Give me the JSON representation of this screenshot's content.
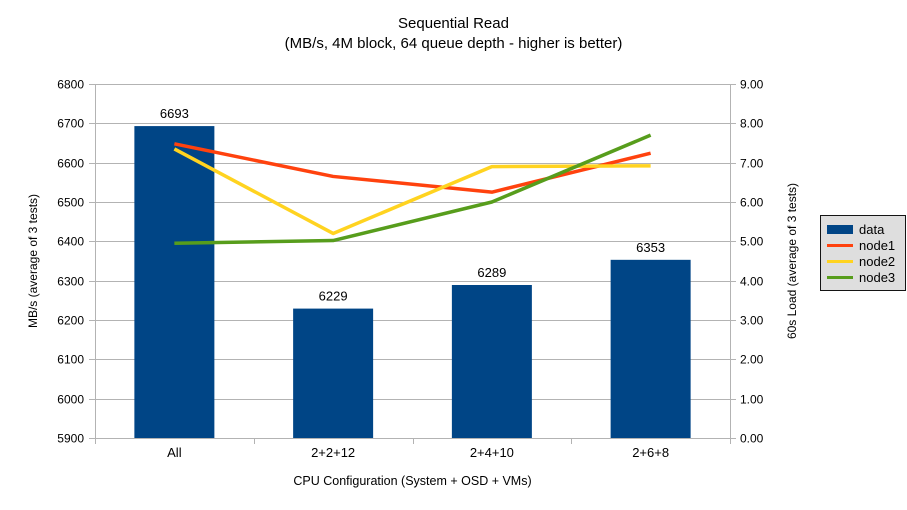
{
  "title": "Sequential Read",
  "subtitle": "(MB/s, 4M block, 64 queue depth - higher is better)",
  "chart_data": {
    "type": "bar",
    "combo": "bar+line",
    "categories": [
      "All",
      "2+2+12",
      "2+4+10",
      "2+6+8"
    ],
    "series": [
      {
        "name": "data",
        "type": "bar",
        "axis": "left",
        "color": "#004586",
        "values": [
          6693,
          6229,
          6289,
          6353
        ],
        "data_labels": [
          "6693",
          "6229",
          "6289",
          "6353"
        ]
      },
      {
        "name": "node1",
        "type": "line",
        "axis": "right",
        "color": "#FF420E",
        "values": [
          7.48,
          6.65,
          6.25,
          7.24
        ]
      },
      {
        "name": "node2",
        "type": "line",
        "axis": "right",
        "color": "#FFD320",
        "values": [
          7.35,
          5.2,
          6.9,
          6.92
        ]
      },
      {
        "name": "node3",
        "type": "line",
        "axis": "right",
        "color": "#579D1C",
        "values": [
          4.95,
          5.02,
          6.0,
          7.7
        ]
      }
    ],
    "xlabel": "CPU Configuration (System + OSD + VMs)",
    "ylabel_left": "MB/s (average of 3 tests)",
    "ylabel_right": "60s Load (average of 3 tests)",
    "left_axis": {
      "min": 5900,
      "max": 6800,
      "step": 100
    },
    "right_axis": {
      "min": 0.0,
      "max": 9.0,
      "step": 1.0,
      "format_decimals": 2
    },
    "grid": "horizontal",
    "gridline_color": "#b3b3b3",
    "background": "#ffffff",
    "legend": {
      "position": "right",
      "background": "#dedede",
      "entries": [
        "data",
        "node1",
        "node2",
        "node3"
      ]
    }
  }
}
